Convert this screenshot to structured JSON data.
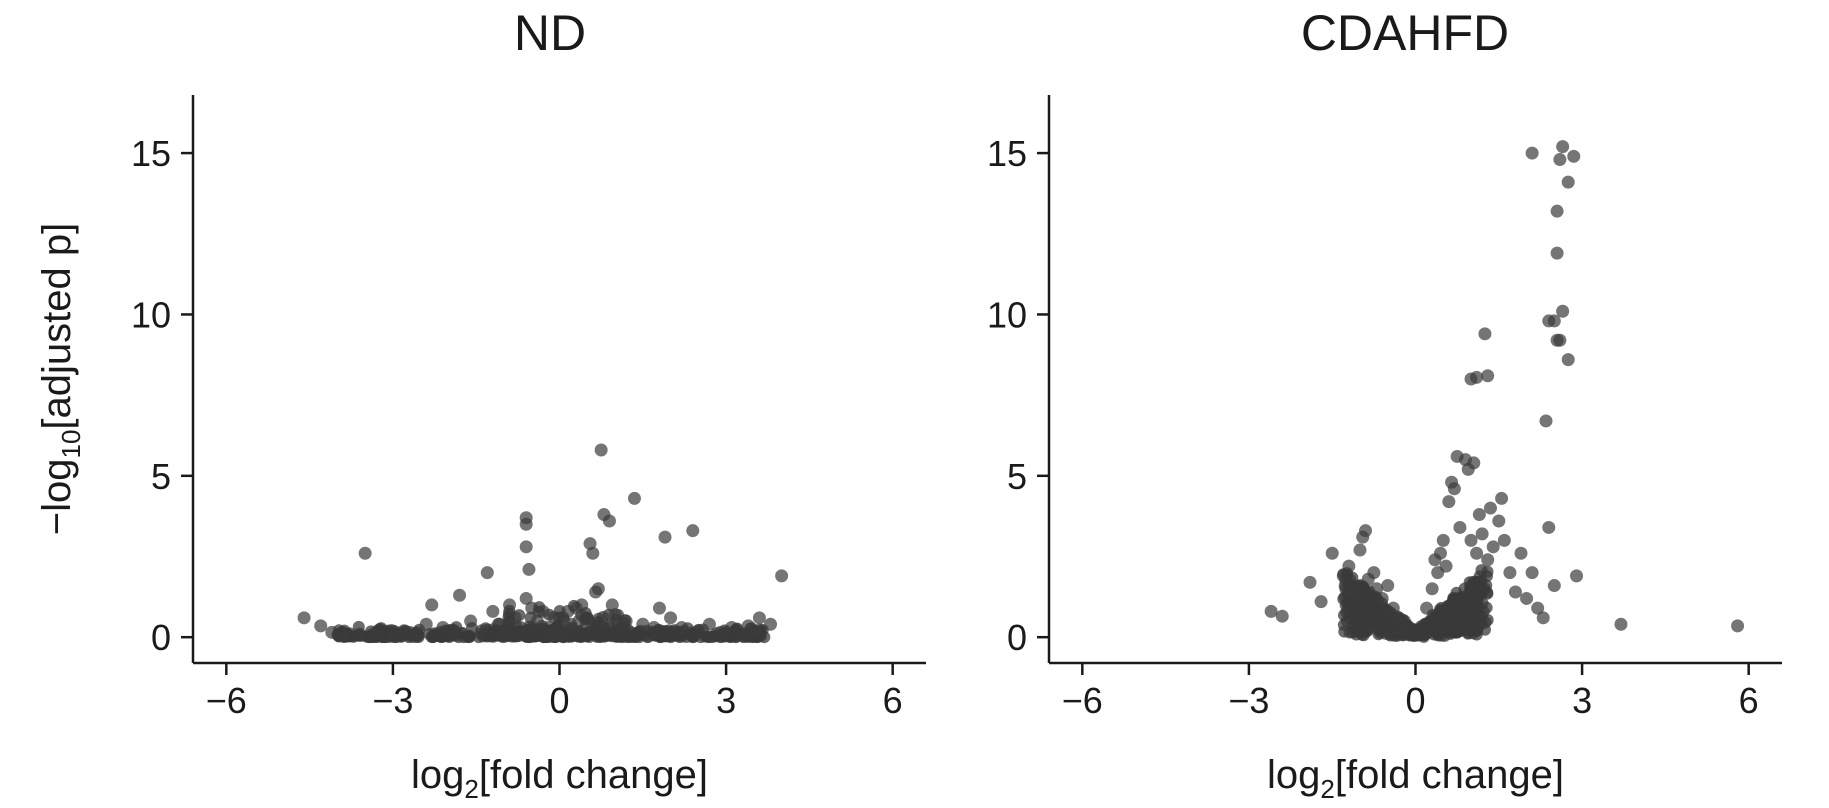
{
  "chart_data": [
    {
      "type": "scatter",
      "title": "ND",
      "xlabel_main": "log",
      "xlabel_sub": "2",
      "xlabel_rest": "[fold change]",
      "ylabel_main": "−log",
      "ylabel_sub": "10",
      "ylabel_rest": "[adjusted p]",
      "xlim": [
        -6.6,
        6.6
      ],
      "ylim": [
        -0.8,
        16.8
      ],
      "xticks": [
        -6,
        -3,
        0,
        3,
        6
      ],
      "xtick_labels": [
        "−6",
        "−3",
        "0",
        "3",
        "6"
      ],
      "yticks": [
        0,
        5,
        10,
        15
      ],
      "ytick_labels": [
        "0",
        "5",
        "10",
        "15"
      ],
      "point_color": "#3a3a3a",
      "series": [
        {
          "points": [
            [
              -4.6,
              0.6
            ],
            [
              -4.3,
              0.35
            ],
            [
              -4.1,
              0.15
            ],
            [
              -3.9,
              0.05
            ],
            [
              -3.6,
              0.1
            ],
            [
              -3.5,
              2.6
            ],
            [
              -3.3,
              0.15
            ],
            [
              -3.0,
              0.1
            ],
            [
              -2.8,
              0.2
            ],
            [
              -2.6,
              0.1
            ],
            [
              -2.4,
              0.4
            ],
            [
              -2.3,
              1.0
            ],
            [
              -2.1,
              0.3
            ],
            [
              -1.9,
              0.2
            ],
            [
              -1.8,
              1.3
            ],
            [
              -1.6,
              0.5
            ],
            [
              -1.4,
              0.2
            ],
            [
              -1.3,
              2.0
            ],
            [
              -1.2,
              0.8
            ],
            [
              -1.1,
              0.4
            ],
            [
              -1.0,
              0.2
            ],
            [
              -0.9,
              1.0
            ],
            [
              -0.8,
              0.6
            ],
            [
              -0.7,
              0.3
            ],
            [
              -0.6,
              1.2
            ],
            [
              -0.6,
              3.7
            ],
            [
              -0.6,
              3.5
            ],
            [
              -0.6,
              2.8
            ],
            [
              -0.55,
              2.1
            ],
            [
              -0.5,
              0.9
            ],
            [
              -0.4,
              0.5
            ],
            [
              -0.3,
              0.8
            ],
            [
              -0.2,
              0.3
            ],
            [
              -0.1,
              0.15
            ],
            [
              0.1,
              0.2
            ],
            [
              0.15,
              0.8
            ],
            [
              0.2,
              0.4
            ],
            [
              0.3,
              0.9
            ],
            [
              0.35,
              0.5
            ],
            [
              0.4,
              1.0
            ],
            [
              0.5,
              0.6
            ],
            [
              0.55,
              2.9
            ],
            [
              0.6,
              2.6
            ],
            [
              0.65,
              1.4
            ],
            [
              0.7,
              1.5
            ],
            [
              0.75,
              5.8
            ],
            [
              0.8,
              3.8
            ],
            [
              0.9,
              3.6
            ],
            [
              0.95,
              1.0
            ],
            [
              1.0,
              0.7
            ],
            [
              1.2,
              0.5
            ],
            [
              1.35,
              4.3
            ],
            [
              1.5,
              0.4
            ],
            [
              1.7,
              0.3
            ],
            [
              1.8,
              0.9
            ],
            [
              1.9,
              3.1
            ],
            [
              2.0,
              0.6
            ],
            [
              2.2,
              0.3
            ],
            [
              2.4,
              3.3
            ],
            [
              2.5,
              0.2
            ],
            [
              2.7,
              0.4
            ],
            [
              2.9,
              0.15
            ],
            [
              3.1,
              0.3
            ],
            [
              3.3,
              0.1
            ],
            [
              3.4,
              0.35
            ],
            [
              3.5,
              0.2
            ],
            [
              3.6,
              0.6
            ],
            [
              3.8,
              0.4
            ],
            [
              4.0,
              1.9
            ]
          ]
        }
      ]
    },
    {
      "type": "scatter",
      "title": "CDAHFD",
      "xlabel_main": "log",
      "xlabel_sub": "2",
      "xlabel_rest": "[fold change]",
      "ylim": [
        -0.8,
        16.8
      ],
      "xlim": [
        -6.6,
        6.6
      ],
      "xticks": [
        -6,
        -3,
        0,
        3,
        6
      ],
      "xtick_labels": [
        "−6",
        "−3",
        "0",
        "3",
        "6"
      ],
      "yticks": [
        0,
        5,
        10,
        15
      ],
      "ytick_labels": [
        "0",
        "5",
        "10",
        "15"
      ],
      "point_color": "#3a3a3a",
      "series": [
        {
          "points": [
            [
              -2.6,
              0.8
            ],
            [
              -2.4,
              0.65
            ],
            [
              -1.9,
              1.7
            ],
            [
              -1.7,
              1.1
            ],
            [
              -1.5,
              2.6
            ],
            [
              -1.3,
              1.9
            ],
            [
              -1.2,
              2.2
            ],
            [
              -1.1,
              1.4
            ],
            [
              -1.0,
              2.7
            ],
            [
              -0.95,
              3.1
            ],
            [
              -0.9,
              3.3
            ],
            [
              -0.85,
              1.8
            ],
            [
              -0.75,
              2.0
            ],
            [
              -0.7,
              1.5
            ],
            [
              -0.6,
              1.2
            ],
            [
              -0.5,
              1.6
            ],
            [
              -0.4,
              0.9
            ],
            [
              -0.3,
              0.6
            ],
            [
              -0.2,
              0.5
            ],
            [
              0.2,
              0.9
            ],
            [
              0.3,
              1.5
            ],
            [
              0.35,
              2.4
            ],
            [
              0.4,
              2.0
            ],
            [
              0.45,
              2.6
            ],
            [
              0.5,
              3.0
            ],
            [
              0.55,
              2.2
            ],
            [
              0.6,
              4.2
            ],
            [
              0.65,
              4.8
            ],
            [
              0.7,
              4.6
            ],
            [
              0.75,
              5.6
            ],
            [
              0.8,
              3.4
            ],
            [
              0.9,
              5.5
            ],
            [
              0.95,
              5.2
            ],
            [
              1.0,
              3.0
            ],
            [
              1.05,
              5.4
            ],
            [
              1.1,
              2.6
            ],
            [
              1.15,
              3.8
            ],
            [
              1.2,
              3.2
            ],
            [
              1.3,
              2.4
            ],
            [
              1.35,
              4.0
            ],
            [
              1.4,
              2.8
            ],
            [
              1.5,
              3.6
            ],
            [
              1.55,
              4.3
            ],
            [
              1.6,
              3.0
            ],
            [
              1.7,
              2.0
            ],
            [
              1.8,
              1.4
            ],
            [
              1.9,
              2.6
            ],
            [
              2.0,
              1.2
            ],
            [
              2.1,
              2.0
            ],
            [
              2.2,
              0.9
            ],
            [
              2.3,
              0.6
            ],
            [
              2.4,
              3.4
            ],
            [
              2.5,
              1.6
            ],
            [
              1.0,
              8.0
            ],
            [
              1.1,
              8.05
            ],
            [
              1.3,
              8.1
            ],
            [
              1.25,
              9.4
            ],
            [
              2.35,
              6.7
            ],
            [
              2.4,
              9.8
            ],
            [
              2.5,
              9.8
            ],
            [
              2.55,
              9.2
            ],
            [
              2.6,
              9.2
            ],
            [
              2.65,
              10.1
            ],
            [
              2.75,
              8.6
            ],
            [
              2.55,
              11.9
            ],
            [
              2.55,
              13.2
            ],
            [
              2.75,
              14.1
            ],
            [
              2.1,
              15.0
            ],
            [
              2.6,
              14.8
            ],
            [
              2.65,
              15.2
            ],
            [
              2.85,
              14.9
            ],
            [
              2.9,
              1.9
            ],
            [
              3.7,
              0.4
            ],
            [
              5.8,
              0.35
            ]
          ]
        }
      ]
    }
  ]
}
